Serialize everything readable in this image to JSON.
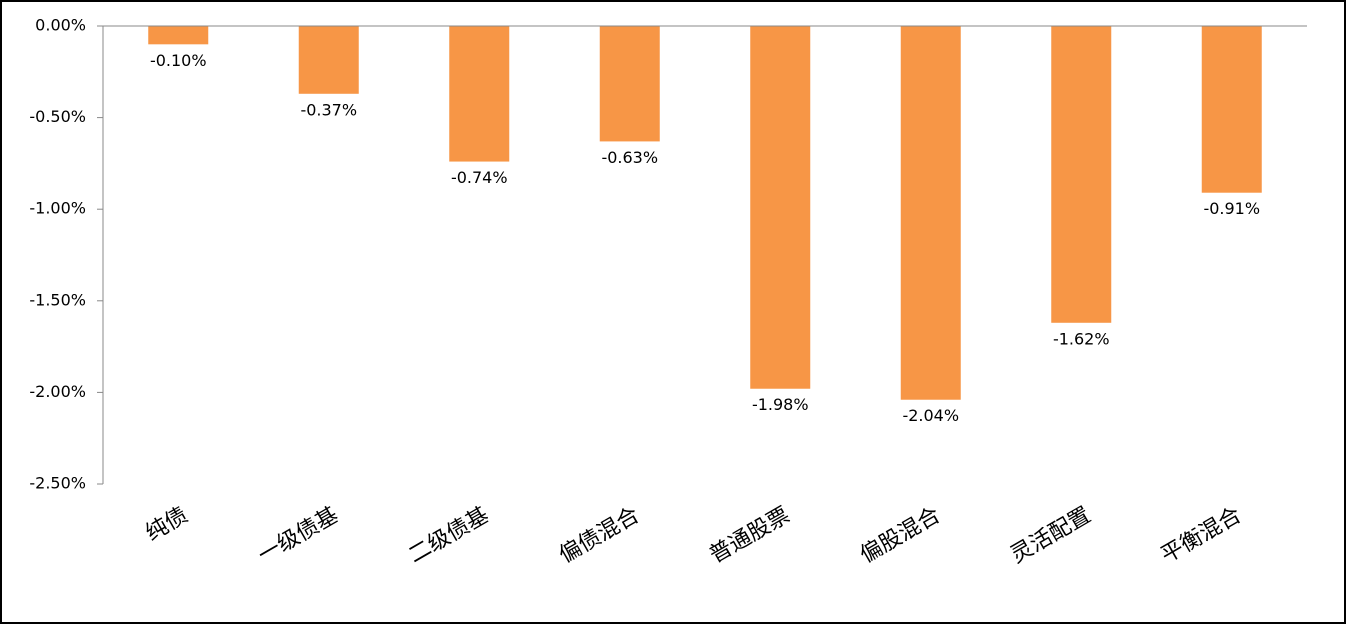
{
  "chart_data": {
    "type": "bar",
    "categories": [
      "纯债",
      "一级债基",
      "二级债基",
      "偏债混合",
      "普通股票",
      "偏股混合",
      "灵活配置",
      "平衡混合"
    ],
    "values": [
      -0.1,
      -0.37,
      -0.74,
      -0.63,
      -1.98,
      -2.04,
      -1.62,
      -0.91
    ],
    "value_labels": [
      "-0.10%",
      "-0.37%",
      "-0.74%",
      "-0.63%",
      "-1.98%",
      "-2.04%",
      "-1.62%",
      "-0.91%"
    ],
    "color": "#f79646",
    "ylim": [
      -2.5,
      0
    ],
    "yticks": [
      {
        "value": 0,
        "label": "0.00%"
      },
      {
        "value": -0.5,
        "label": "-0.50%"
      },
      {
        "value": -1,
        "label": "-1.00%"
      },
      {
        "value": -1.5,
        "label": "-1.50%"
      },
      {
        "value": -2,
        "label": "-2.00%"
      },
      {
        "value": -2.5,
        "label": "-2.50%"
      }
    ],
    "grid": false
  }
}
